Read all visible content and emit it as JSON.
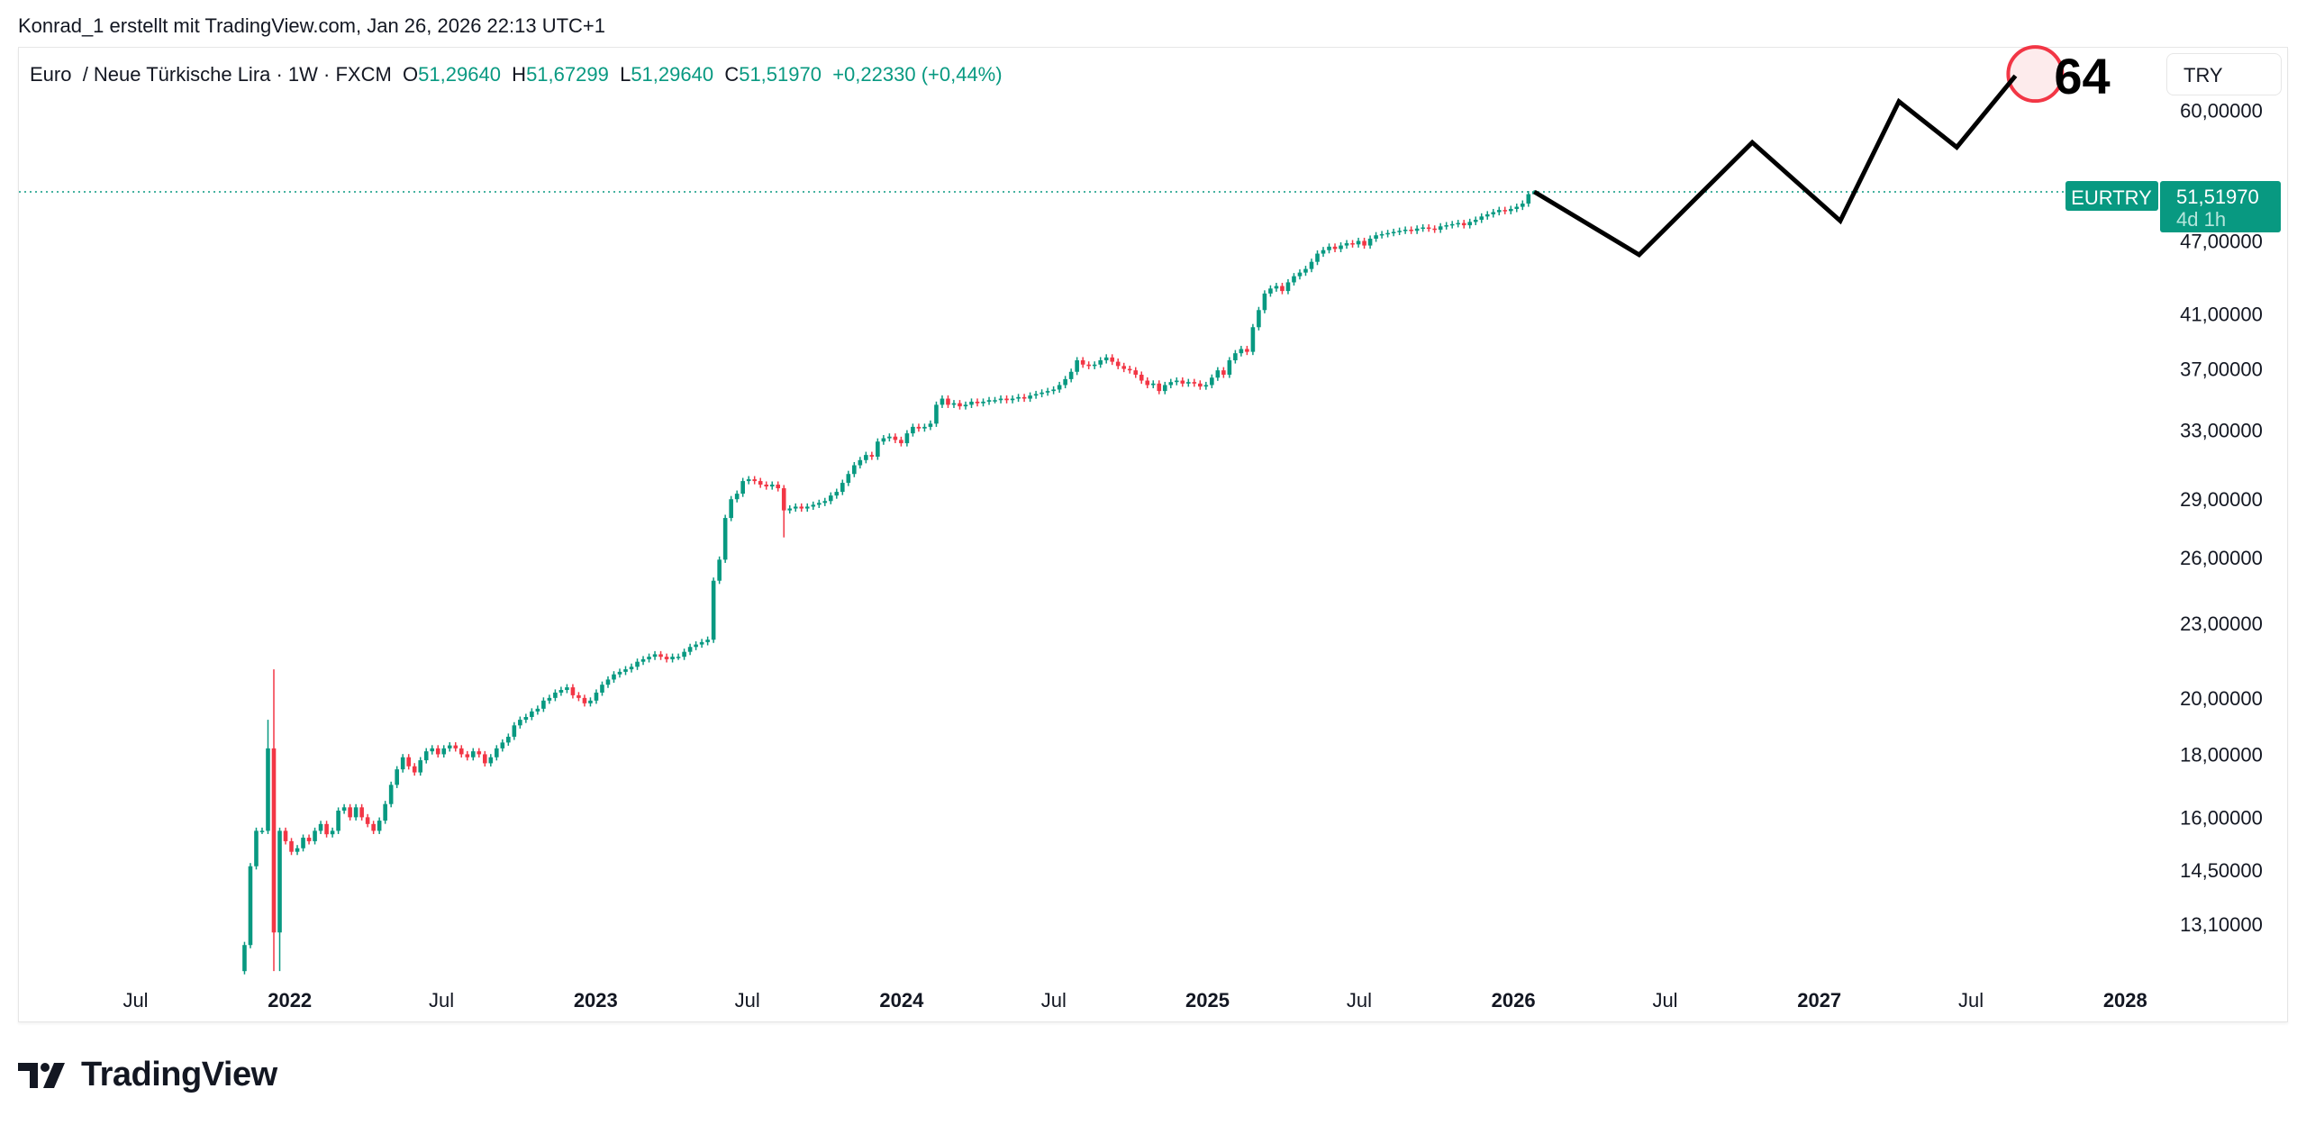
{
  "header": {
    "attribution": "Konrad_1 erstellt mit TradingView.com, Jan 26, 2026 22:13 UTC+1"
  },
  "legend": {
    "symbol": "Euro  / Neue Türkische Lira · 1W · FXCM",
    "o_label": "O",
    "o_value": "51,29640",
    "h_label": "H",
    "h_value": "51,67299",
    "l_label": "L",
    "l_value": "51,29640",
    "c_label": "C",
    "c_value": "51,51970",
    "change": "+0,22330 (+0,44%)"
  },
  "currency_button": "TRY",
  "price_tag": {
    "symbol": "EURTRY",
    "price": "51,51970",
    "countdown": "4d 1h"
  },
  "annotation": {
    "text": "64"
  },
  "logo": {
    "text": "TradingView"
  },
  "colors": {
    "up": "#089981",
    "down": "#F23645",
    "projection": "#000000",
    "circle": "#F23645",
    "circle_fill": "#FDE7E9"
  },
  "chart_data": {
    "type": "candlestick",
    "interval": "1W",
    "y_scale": "log",
    "ylim": [
      12.0,
      64
    ],
    "grid": false,
    "first_week": "2021-11-08",
    "closes": [
      12.6,
      14.6,
      15.6,
      15.6,
      18.2,
      12.9,
      15.6,
      15.3,
      15.0,
      15.1,
      15.4,
      15.3,
      15.6,
      15.8,
      15.5,
      15.6,
      16.2,
      16.3,
      16.0,
      16.3,
      16.0,
      15.8,
      15.6,
      15.9,
      16.4,
      17.0,
      17.5,
      17.9,
      17.6,
      17.4,
      17.8,
      18.1,
      18.2,
      18.0,
      18.2,
      18.3,
      18.2,
      18.0,
      17.9,
      18.1,
      18.0,
      17.7,
      17.9,
      18.2,
      18.4,
      18.6,
      19.0,
      19.2,
      19.3,
      19.5,
      19.6,
      19.9,
      20.0,
      20.2,
      20.3,
      20.4,
      20.1,
      20.0,
      19.8,
      19.9,
      20.2,
      20.5,
      20.7,
      20.9,
      21.0,
      21.1,
      21.2,
      21.4,
      21.5,
      21.6,
      21.7,
      21.6,
      21.5,
      21.6,
      21.6,
      21.8,
      22.0,
      22.1,
      22.2,
      22.3,
      24.9,
      25.9,
      28.0,
      29.0,
      29.3,
      30.0,
      30.1,
      30.0,
      29.8,
      29.7,
      29.8,
      29.6,
      28.4,
      28.5,
      28.6,
      28.5,
      28.6,
      28.7,
      28.8,
      28.9,
      29.2,
      29.4,
      29.9,
      30.4,
      30.9,
      31.2,
      31.5,
      31.4,
      32.3,
      32.5,
      32.6,
      32.4,
      32.2,
      32.8,
      33.2,
      33.1,
      33.2,
      33.4,
      34.6,
      35.0,
      34.6,
      34.7,
      34.5,
      34.6,
      34.8,
      34.7,
      34.8,
      34.9,
      34.9,
      35.0,
      34.9,
      35.0,
      35.1,
      35.0,
      35.2,
      35.3,
      35.4,
      35.5,
      35.6,
      35.9,
      36.3,
      36.8,
      37.6,
      37.3,
      37.2,
      37.3,
      37.6,
      37.8,
      37.5,
      37.2,
      37.0,
      36.9,
      36.6,
      36.2,
      35.9,
      36.0,
      35.5,
      35.9,
      36.1,
      36.2,
      36.0,
      36.1,
      36.0,
      35.8,
      35.9,
      36.4,
      36.9,
      36.6,
      37.6,
      38.1,
      38.4,
      38.2,
      40.0,
      41.3,
      42.6,
      43.0,
      43.2,
      42.8,
      43.5,
      44.0,
      44.3,
      44.6,
      45.2,
      45.9,
      46.2,
      46.5,
      46.3,
      46.6,
      46.8,
      46.7,
      47.0,
      46.6,
      47.2,
      47.5,
      47.6,
      47.7,
      47.8,
      47.9,
      48.0,
      47.9,
      48.1,
      48.2,
      48.1,
      48.0,
      48.3,
      48.4,
      48.5,
      48.6,
      48.4,
      48.7,
      48.9,
      49.2,
      49.4,
      49.6,
      49.8,
      49.7,
      49.9,
      50.1,
      50.4,
      51.2964,
      51.5197
    ],
    "first_open": 12.0,
    "wick_extremes": [
      {
        "week": 4,
        "high": 19.2
      },
      {
        "week": 5,
        "high": 21.1,
        "low": 12.0
      },
      {
        "week": 6,
        "low": 12.0
      },
      {
        "week": 92,
        "low": 27.0
      },
      {
        "week": 220,
        "open": 51.2964,
        "high": 51.67299,
        "low": 51.2964
      }
    ],
    "last_price": 51.5197,
    "projection": [
      {
        "date": "2026-01-26",
        "value": 51.52
      },
      {
        "date": "2026-05-31",
        "value": 45.8
      },
      {
        "date": "2026-10-13",
        "value": 56.5
      },
      {
        "date": "2027-01-26",
        "value": 48.8
      },
      {
        "date": "2027-04-06",
        "value": 61.0
      },
      {
        "date": "2027-06-14",
        "value": 56.0
      },
      {
        "date": "2027-08-23",
        "value": 64.0
      }
    ],
    "y_ticks": [
      {
        "value": 60,
        "label": "60,00000"
      },
      {
        "value": 47,
        "label": "47,00000"
      },
      {
        "value": 41,
        "label": "41,00000"
      },
      {
        "value": 37,
        "label": "37,00000"
      },
      {
        "value": 33,
        "label": "33,00000"
      },
      {
        "value": 29,
        "label": "29,00000"
      },
      {
        "value": 26,
        "label": "26,00000"
      },
      {
        "value": 23,
        "label": "23,00000"
      },
      {
        "value": 20,
        "label": "20,00000"
      },
      {
        "value": 18,
        "label": "18,00000"
      },
      {
        "value": 16,
        "label": "16,00000"
      },
      {
        "value": 14.5,
        "label": "14,50000"
      },
      {
        "value": 13.1,
        "label": "13,10000"
      }
    ],
    "x_ticks": [
      {
        "date": "2021-07-01",
        "label": "Jul",
        "bold": false
      },
      {
        "date": "2022-01-01",
        "label": "2022",
        "bold": true
      },
      {
        "date": "2022-07-01",
        "label": "Jul",
        "bold": false
      },
      {
        "date": "2023-01-01",
        "label": "2023",
        "bold": true
      },
      {
        "date": "2023-07-01",
        "label": "Jul",
        "bold": false
      },
      {
        "date": "2024-01-01",
        "label": "2024",
        "bold": true
      },
      {
        "date": "2024-07-01",
        "label": "Jul",
        "bold": false
      },
      {
        "date": "2025-01-01",
        "label": "2025",
        "bold": true
      },
      {
        "date": "2025-07-01",
        "label": "Jul",
        "bold": false
      },
      {
        "date": "2026-01-01",
        "label": "2026",
        "bold": true
      },
      {
        "date": "2026-07-01",
        "label": "Jul",
        "bold": false
      },
      {
        "date": "2027-01-01",
        "label": "2027",
        "bold": true
      },
      {
        "date": "2027-07-01",
        "label": "Jul",
        "bold": false
      },
      {
        "date": "2028-01-01",
        "label": "2028",
        "bold": true
      }
    ]
  }
}
